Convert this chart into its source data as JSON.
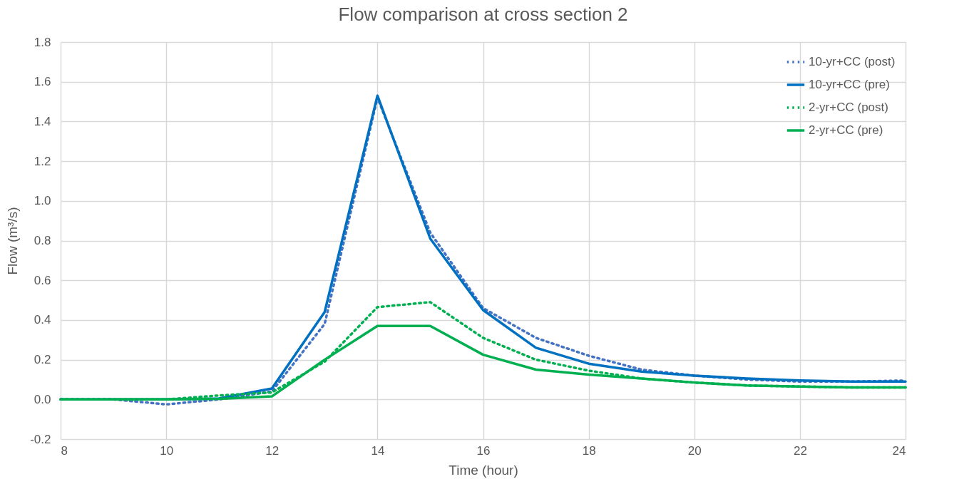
{
  "chart_data": {
    "type": "line",
    "title": "Flow comparison at cross section 2",
    "xlabel": "Time (hour)",
    "ylabel": "Flow (m³/s)",
    "x": [
      8,
      9,
      10,
      11,
      12,
      13,
      14,
      15,
      16,
      17,
      18,
      19,
      20,
      21,
      22,
      23,
      24
    ],
    "series": [
      {
        "name": "10-yr+CC (post)",
        "color": "#4472c4",
        "line_style": "dotted",
        "values": [
          0,
          0,
          -0.025,
          0,
          0.04,
          0.38,
          1.52,
          0.84,
          0.46,
          0.31,
          0.22,
          0.15,
          0.12,
          0.1,
          0.09,
          0.09,
          0.095
        ]
      },
      {
        "name": "10-yr+CC (pre)",
        "color": "#0070c0",
        "line_style": "solid",
        "values": [
          0,
          0,
          0,
          0.005,
          0.055,
          0.44,
          1.53,
          0.81,
          0.45,
          0.26,
          0.18,
          0.14,
          0.12,
          0.105,
          0.095,
          0.09,
          0.09
        ]
      },
      {
        "name": "2-yr+CC (post)",
        "color": "#00b050",
        "line_style": "dotted",
        "values": [
          0,
          0,
          0,
          0.02,
          0.035,
          0.19,
          0.465,
          0.49,
          0.31,
          0.2,
          0.145,
          0.105,
          0.085,
          0.07,
          0.065,
          0.06,
          0.06
        ]
      },
      {
        "name": "2-yr+CC (pre)",
        "color": "#00b050",
        "line_style": "solid",
        "values": [
          0,
          0,
          0,
          0.003,
          0.015,
          0.2,
          0.37,
          0.37,
          0.225,
          0.15,
          0.125,
          0.105,
          0.085,
          0.07,
          0.065,
          0.06,
          0.06
        ]
      }
    ],
    "xlim": [
      8,
      24
    ],
    "xticks": [
      8,
      10,
      12,
      14,
      16,
      18,
      20,
      22,
      24
    ],
    "ylim": [
      -0.2,
      1.8
    ],
    "yticks": [
      -0.2,
      {
        "value": 0,
        "label": "0.0"
      },
      0.2,
      0.4,
      0.6,
      0.8,
      {
        "value": 1,
        "label": "1.0"
      },
      1.2,
      1.4,
      1.6,
      1.8
    ],
    "grid": true,
    "legend": "top right",
    "marker": "none"
  }
}
